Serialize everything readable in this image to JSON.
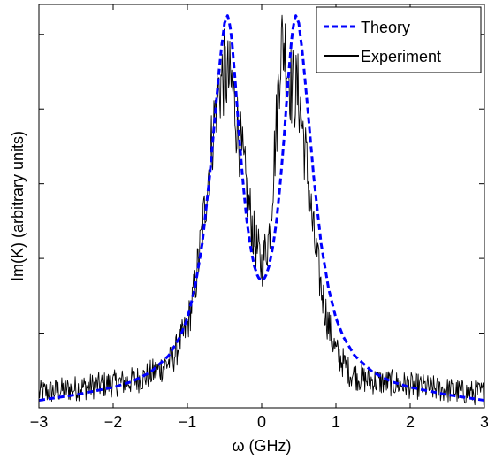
{
  "chart_data": {
    "type": "line",
    "title": "",
    "xlabel": "ω (GHz)",
    "ylabel": "Im(K) (arbitrary units)",
    "xlim": [
      -3,
      3
    ],
    "ylim": [
      0,
      1.08
    ],
    "xticks": [
      -3,
      -2,
      -1,
      0,
      1,
      2,
      3
    ],
    "yticks": [
      0.2,
      0.4,
      0.6,
      0.8,
      1.0
    ],
    "ytick_labels_shown": false,
    "grid": false,
    "legend_position": "top-right",
    "series": [
      {
        "name": "Theory",
        "style": "dashed",
        "color": "#0000ff",
        "x": [
          -3.0,
          -2.5,
          -2.0,
          -1.75,
          -1.5,
          -1.25,
          -1.1,
          -1.0,
          -0.9,
          -0.8,
          -0.7,
          -0.62,
          -0.55,
          -0.5,
          -0.46,
          -0.43,
          -0.4,
          -0.35,
          -0.3,
          -0.25,
          -0.2,
          -0.15,
          -0.1,
          -0.05,
          0.0,
          0.05,
          0.1,
          0.15,
          0.2,
          0.25,
          0.3,
          0.35,
          0.4,
          0.43,
          0.46,
          0.5,
          0.55,
          0.62,
          0.7,
          0.8,
          0.9,
          1.0,
          1.1,
          1.25,
          1.5,
          1.75,
          2.0,
          2.5,
          3.0
        ],
        "y": [
          0.02,
          0.035,
          0.055,
          0.07,
          0.095,
          0.14,
          0.19,
          0.24,
          0.32,
          0.44,
          0.62,
          0.8,
          0.95,
          1.03,
          1.05,
          1.03,
          0.98,
          0.86,
          0.72,
          0.6,
          0.5,
          0.43,
          0.38,
          0.35,
          0.34,
          0.35,
          0.38,
          0.43,
          0.5,
          0.6,
          0.72,
          0.86,
          0.98,
          1.03,
          1.05,
          1.03,
          0.95,
          0.8,
          0.62,
          0.44,
          0.32,
          0.24,
          0.19,
          0.14,
          0.095,
          0.07,
          0.055,
          0.035,
          0.02
        ]
      },
      {
        "name": "Experiment",
        "style": "solid",
        "color": "#000000",
        "x": [
          -3.0,
          -2.8,
          -2.6,
          -2.4,
          -2.2,
          -2.0,
          -1.8,
          -1.6,
          -1.4,
          -1.2,
          -1.0,
          -0.9,
          -0.8,
          -0.7,
          -0.6,
          -0.5,
          -0.4,
          -0.3,
          -0.2,
          -0.1,
          0.0,
          0.1,
          0.2,
          0.25,
          0.3,
          0.4,
          0.5,
          0.6,
          0.7,
          0.8,
          0.9,
          1.0,
          1.2,
          1.4,
          1.6,
          1.8,
          2.0,
          2.2,
          2.4,
          2.6,
          2.8,
          3.0
        ],
        "y": [
          0.04,
          0.045,
          0.05,
          0.055,
          0.06,
          0.065,
          0.07,
          0.08,
          0.1,
          0.13,
          0.22,
          0.32,
          0.47,
          0.66,
          0.84,
          0.9,
          0.86,
          0.72,
          0.58,
          0.45,
          0.38,
          0.46,
          0.76,
          0.96,
          0.98,
          0.86,
          0.84,
          0.66,
          0.46,
          0.32,
          0.22,
          0.15,
          0.09,
          0.075,
          0.07,
          0.065,
          0.06,
          0.055,
          0.05,
          0.045,
          0.04,
          0.04
        ]
      }
    ]
  }
}
